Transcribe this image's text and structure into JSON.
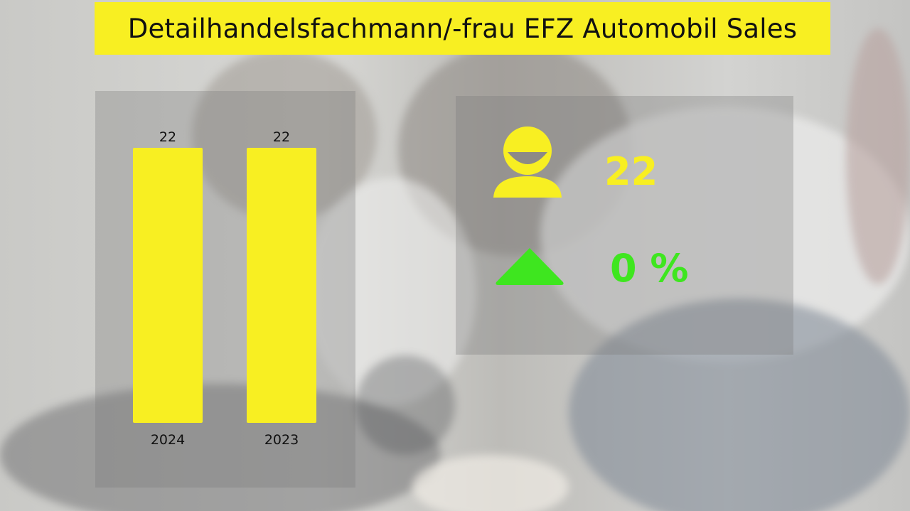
{
  "title": "Detailhandelsfachmann/-frau EFZ Automobil Sales",
  "chart_data": {
    "type": "bar",
    "categories": [
      "2024",
      "2023"
    ],
    "values": [
      22,
      22
    ],
    "value_labels": [
      "22",
      "22"
    ],
    "ylim": [
      0,
      22
    ],
    "grid": false,
    "legend": "none",
    "bar_color": "#f8ef22"
  },
  "kpi": {
    "count_value": "22",
    "count_icon": "person-icon",
    "change_value": "0 %",
    "change_icon": "triangle-up-icon"
  },
  "colors": {
    "accent_yellow": "#f8ef22",
    "accent_green": "#3ee61f"
  }
}
